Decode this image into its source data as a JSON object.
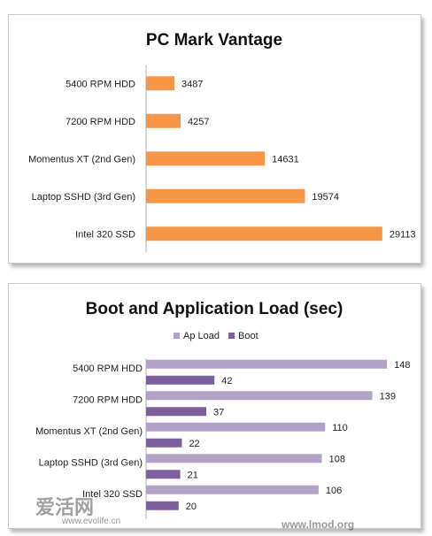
{
  "colors": {
    "bar_orange": "#f79646",
    "ap_load": "#b3a2c7",
    "boot": "#7d5f9d",
    "axis": "#b0b0b0"
  },
  "chart_data": [
    {
      "type": "bar",
      "orientation": "horizontal",
      "title": "PC Mark Vantage",
      "categories": [
        "5400 RPM HDD",
        "7200 RPM HDD",
        "Momentus XT (2nd Gen)",
        "Laptop SSHD (3rd Gen)",
        "Intel 320 SSD"
      ],
      "values": [
        3487,
        4257,
        14631,
        19574,
        29113
      ],
      "xlim": [
        0,
        30000
      ],
      "grid": false,
      "legend": "none"
    },
    {
      "type": "bar",
      "orientation": "horizontal",
      "title": "Boot and Application Load (sec)",
      "categories": [
        "5400 RPM HDD",
        "7200 RPM HDD",
        "Momentus XT (2nd Gen)",
        "Laptop SSHD (3rd Gen)",
        "Intel 320 SSD"
      ],
      "series": [
        {
          "name": "Ap Load",
          "values": [
            148,
            139,
            110,
            108,
            106
          ]
        },
        {
          "name": "Boot",
          "values": [
            42,
            37,
            22,
            21,
            20
          ]
        }
      ],
      "xlim": [
        0,
        155
      ],
      "grid": false,
      "legend": "top"
    }
  ],
  "watermarks": {
    "left_text": "爱活网",
    "left_url": "www.evolife.cn",
    "right_url": "www.lmod.org"
  }
}
